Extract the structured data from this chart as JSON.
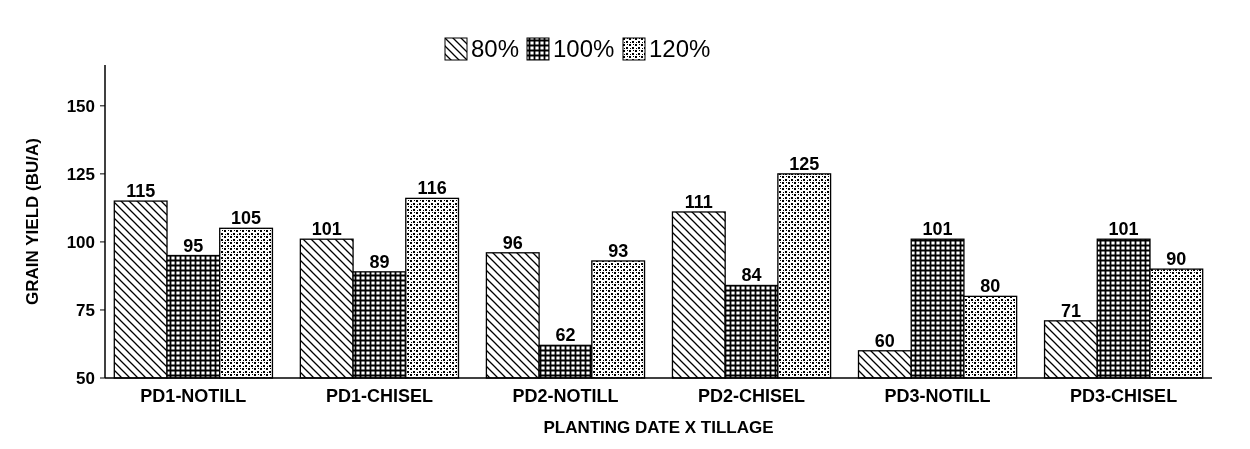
{
  "chart_data": {
    "type": "bar",
    "xlabel": "PLANTING DATE X TILLAGE",
    "ylabel": "GRAIN YIELD (BU/A)",
    "categories": [
      "PD1-NOTILL",
      "PD1-CHISEL",
      "PD2-NOTILL",
      "PD2-CHISEL",
      "PD3-NOTILL",
      "PD3-CHISEL"
    ],
    "series": [
      {
        "name": "80%",
        "color": "#000000",
        "values": [
          115,
          101,
          96,
          111,
          60,
          71
        ]
      },
      {
        "name": "100%",
        "color": "#000000",
        "values": [
          95,
          89,
          62,
          84,
          101,
          101
        ]
      },
      {
        "name": "120%",
        "color": "#000000",
        "values": [
          105,
          116,
          93,
          125,
          80,
          90
        ]
      }
    ],
    "ylim": [
      50,
      165
    ],
    "yticks": [
      50,
      75,
      100,
      125,
      150
    ],
    "data_labels": true,
    "legend": "top",
    "grid": false
  }
}
